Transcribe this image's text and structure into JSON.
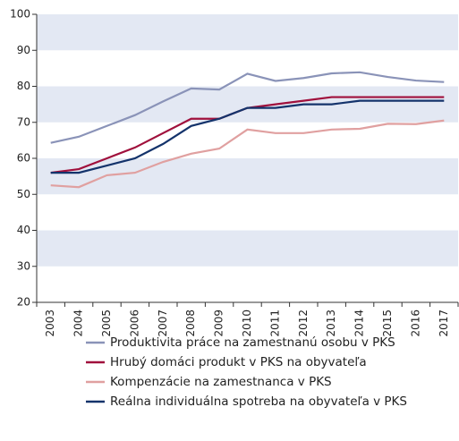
{
  "chart_data": {
    "type": "line",
    "categories": [
      "2003",
      "2004",
      "2005",
      "2006",
      "2007",
      "2008",
      "2009",
      "2010",
      "2011",
      "2012",
      "2013",
      "2014",
      "2015",
      "2016",
      "2017"
    ],
    "series": [
      {
        "name": "Produktivita práce na zamestnanú osobu v PKS",
        "color": "#8a93b8",
        "values": [
          64.3,
          66,
          69,
          72,
          75.8,
          79.4,
          79.1,
          83.5,
          81.5,
          82.3,
          83.6,
          83.9,
          82.6,
          81.6,
          81.2
        ]
      },
      {
        "name": "Hrubý domáci produkt v PKS na obyvateľa",
        "color": "#a0103c",
        "values": [
          56,
          57,
          60,
          63,
          67,
          71,
          71,
          74,
          75,
          76,
          77,
          77,
          77,
          77,
          77
        ]
      },
      {
        "name": "Kompenzácie na zamestnanca v PKS",
        "color": "#e0a0a0",
        "values": [
          52.5,
          52,
          55.3,
          56,
          59,
          61.3,
          62.7,
          68,
          67,
          67,
          68,
          68.2,
          69.6,
          69.5,
          70.5
        ]
      },
      {
        "name": "Reálna individuálna spotreba na obyvateľa v PKS",
        "color": "#14336b",
        "values": [
          56,
          56,
          58,
          60,
          64,
          69,
          71,
          74,
          74,
          75,
          75,
          76,
          76,
          76,
          76
        ]
      }
    ],
    "ylim": [
      20,
      100
    ],
    "yticks": [
      20,
      30,
      40,
      50,
      60,
      70,
      80,
      90,
      100
    ],
    "grid": true
  }
}
